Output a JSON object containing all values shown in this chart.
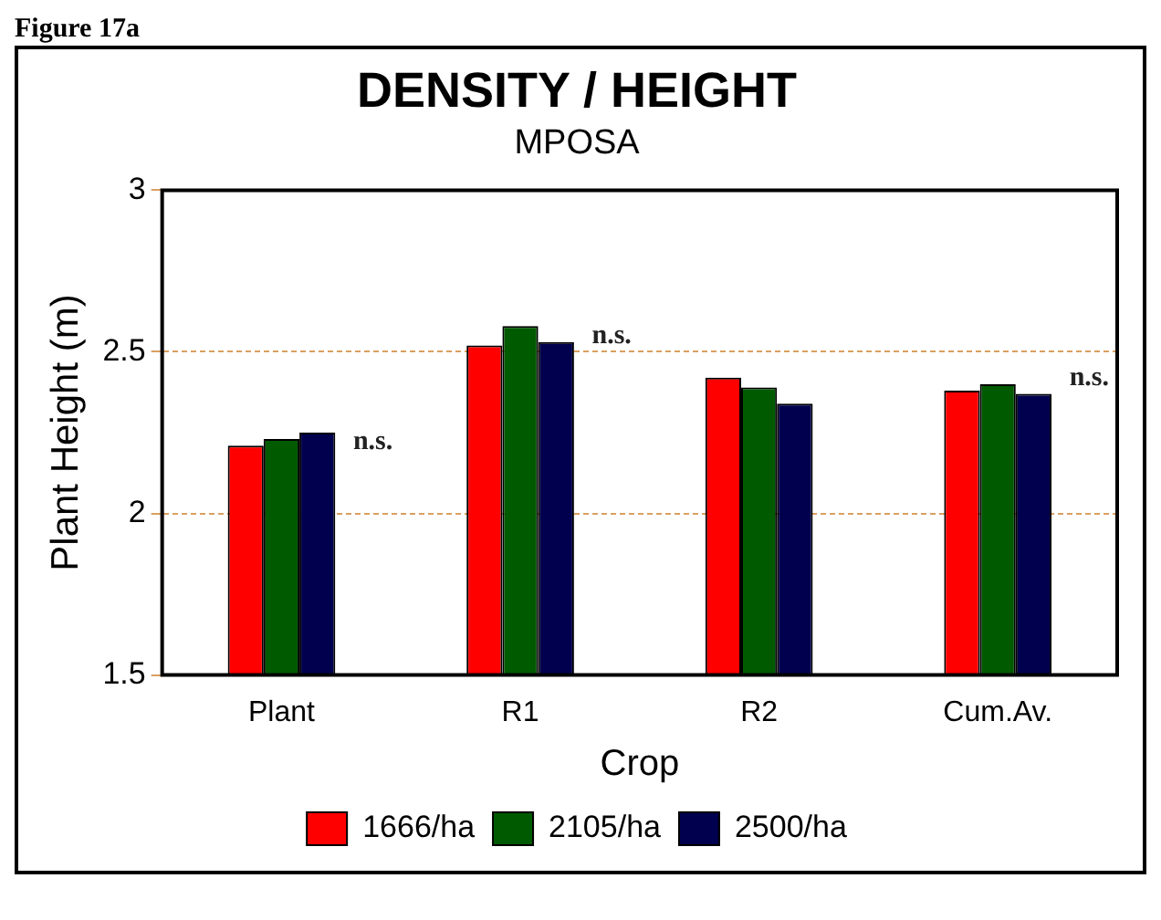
{
  "chart_data": {
    "type": "bar",
    "title": "DENSITY / HEIGHT",
    "subtitle": "MPOSA",
    "xlabel": "Crop",
    "ylabel": "Plant Height (m)",
    "categories": [
      "Plant",
      "R1",
      "R2",
      "Cum.Av."
    ],
    "series": [
      {
        "name": "1666/ha",
        "color": "#ff0000",
        "values": [
          2.21,
          2.52,
          2.42,
          2.38
        ]
      },
      {
        "name": "2105/ha",
        "color": "#005a00",
        "values": [
          2.23,
          2.58,
          2.39,
          2.4
        ]
      },
      {
        "name": "2500/ha",
        "color": "#00004e",
        "values": [
          2.25,
          2.53,
          2.34,
          2.37
        ]
      }
    ],
    "ylim": [
      1.5,
      3
    ],
    "yticks": [
      1.5,
      2,
      2.5,
      3
    ],
    "grid": "y",
    "legend": "bottom",
    "annotations": [
      "Figure 17a",
      {
        "text": "n.s.",
        "x": "Plant",
        "y": 2.22
      },
      {
        "text": "n.s.",
        "x": "R1",
        "y": 2.55
      },
      {
        "text": "n.s.",
        "x": "Cum.Av.",
        "y": 2.42
      }
    ]
  }
}
